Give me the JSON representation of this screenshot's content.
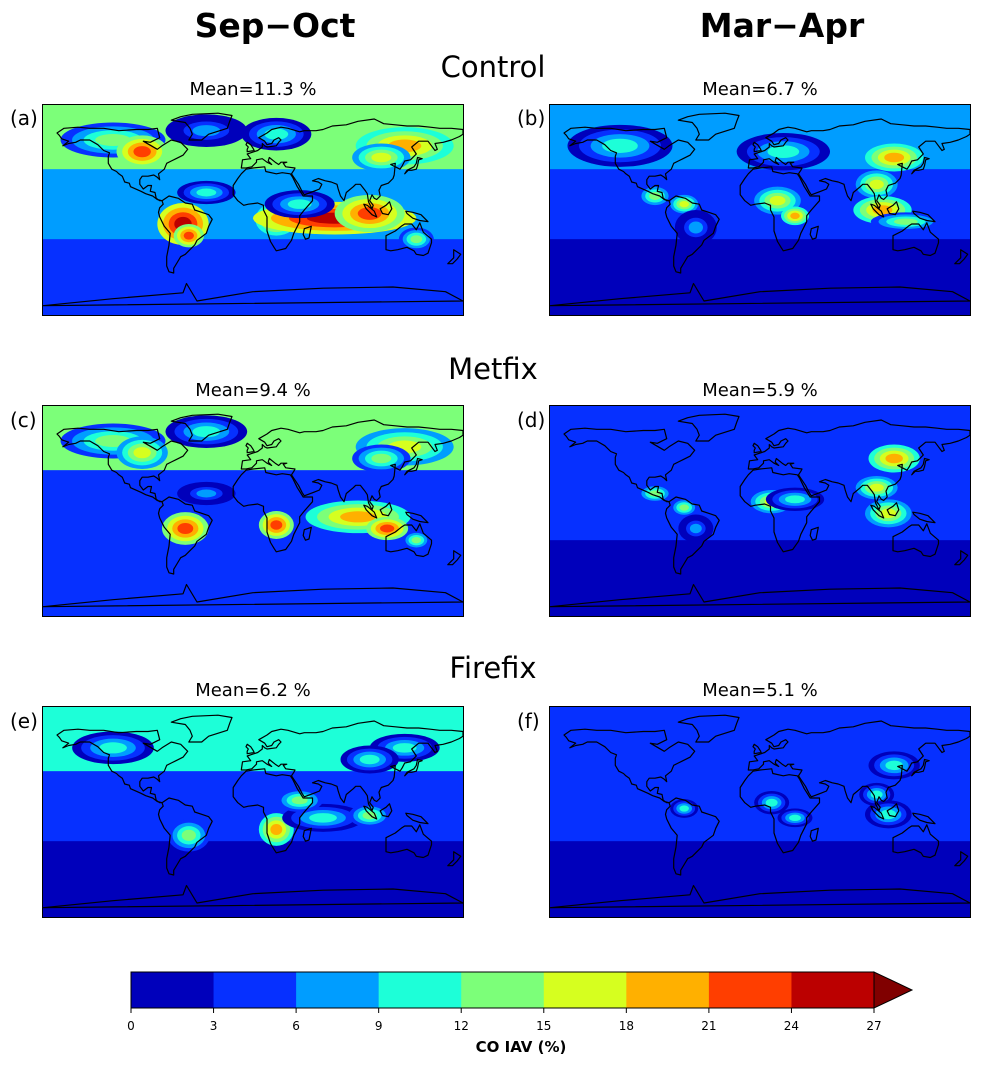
{
  "chart_data": {
    "type": "heatmap",
    "columns": [
      {
        "title": "Sep−Oct"
      },
      {
        "title": "Mar−Apr"
      }
    ],
    "rows": [
      {
        "title": "Control"
      },
      {
        "title": "Metfix"
      },
      {
        "title": "Firefix"
      }
    ],
    "panels": [
      {
        "id": "a",
        "label": "(a)",
        "row": 0,
        "col": 0,
        "mean_label": "Mean=11.3 %",
        "mean": 11.3
      },
      {
        "id": "b",
        "label": "(b)",
        "row": 0,
        "col": 1,
        "mean_label": "Mean=6.7 %",
        "mean": 6.7
      },
      {
        "id": "c",
        "label": "(c)",
        "row": 1,
        "col": 0,
        "mean_label": "Mean=9.4 %",
        "mean": 9.4
      },
      {
        "id": "d",
        "label": "(d)",
        "row": 1,
        "col": 1,
        "mean_label": "Mean=5.9 %",
        "mean": 5.9
      },
      {
        "id": "e",
        "label": "(e)",
        "row": 2,
        "col": 0,
        "mean_label": "Mean=6.2 %",
        "mean": 6.2
      },
      {
        "id": "f",
        "label": "(f)",
        "row": 2,
        "col": 1,
        "mean_label": "Mean=5.1 %",
        "mean": 5.1
      }
    ],
    "colorbar": {
      "label": "CO IAV (%)",
      "levels": [
        0,
        3,
        6,
        9,
        12,
        15,
        18,
        21,
        24,
        27
      ],
      "tick_labels": [
        "0",
        "3",
        "6",
        "9",
        "12",
        "15",
        "18",
        "21",
        "24",
        "27"
      ],
      "colors": [
        "#0000bb",
        "#0630ff",
        "#009dff",
        "#1dffd8",
        "#7cff79",
        "#d6ff1f",
        "#ffb000",
        "#ff3e00",
        "#bb0000"
      ],
      "extend_color": "#800000",
      "extend": "max"
    }
  }
}
